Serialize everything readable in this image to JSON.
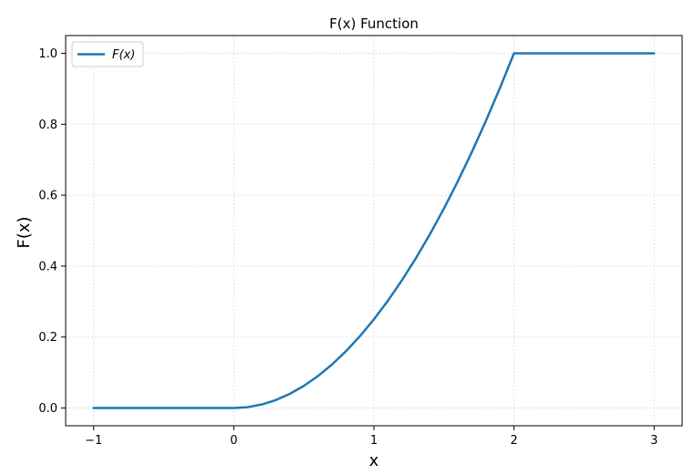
{
  "chart_data": {
    "type": "line",
    "title": "F(x) Function",
    "xlabel": "x",
    "ylabel": "F(x)",
    "xlim": [
      -1.2,
      3.2
    ],
    "ylim": [
      -0.05,
      1.05
    ],
    "xticks": [
      -1,
      0,
      1,
      2,
      3
    ],
    "xtick_labels": [
      "−1",
      "0",
      "1",
      "2",
      "3"
    ],
    "yticks": [
      0.0,
      0.2,
      0.4,
      0.6,
      0.8,
      1.0
    ],
    "ytick_labels": [
      "0.0",
      "0.2",
      "0.4",
      "0.6",
      "0.8",
      "1.0"
    ],
    "grid": true,
    "legend_position": "upper-left",
    "series": [
      {
        "name": "F(x)",
        "color": "#1f77b4",
        "x": [
          -1,
          -0.5,
          0,
          0.1,
          0.2,
          0.3,
          0.4,
          0.5,
          0.6,
          0.7,
          0.8,
          0.9,
          1.0,
          1.1,
          1.2,
          1.3,
          1.4,
          1.5,
          1.6,
          1.7,
          1.8,
          1.9,
          2.0,
          2.5,
          3.0
        ],
        "y": [
          0,
          0,
          0,
          0.0025,
          0.01,
          0.0225,
          0.04,
          0.0625,
          0.09,
          0.1225,
          0.16,
          0.2025,
          0.25,
          0.3025,
          0.36,
          0.4225,
          0.49,
          0.5625,
          0.64,
          0.7225,
          0.81,
          0.9025,
          1.0,
          1.0,
          1.0
        ]
      }
    ]
  }
}
